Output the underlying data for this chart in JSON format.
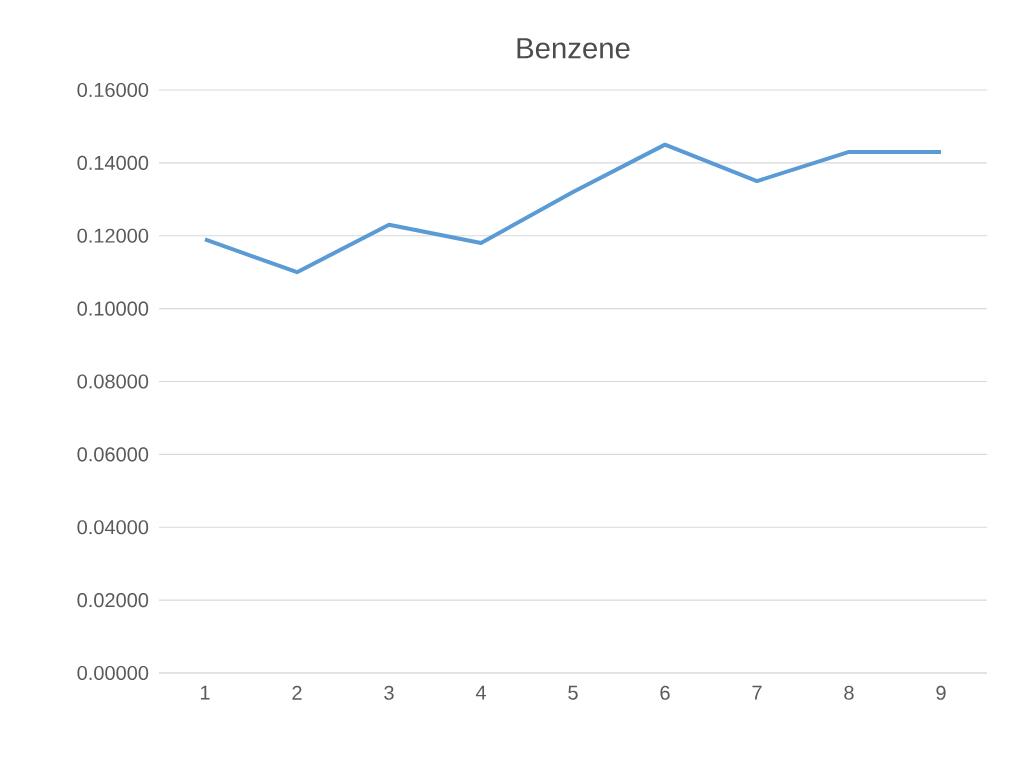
{
  "chart_data": {
    "type": "line",
    "title": "Benzene",
    "categories": [
      "1",
      "2",
      "3",
      "4",
      "5",
      "6",
      "7",
      "8",
      "9"
    ],
    "values": [
      0.119,
      0.11,
      0.123,
      0.118,
      0.132,
      0.145,
      0.135,
      0.143,
      0.143
    ],
    "color": "#5b9bd5",
    "ylim": [
      0,
      0.16
    ],
    "yticks": [
      {
        "value": 0,
        "label": "0.00000"
      },
      {
        "value": 0.02,
        "label": "0.02000"
      },
      {
        "value": 0.04,
        "label": "0.04000"
      },
      {
        "value": 0.06,
        "label": "0.06000"
      },
      {
        "value": 0.08,
        "label": "0.08000"
      },
      {
        "value": 0.1,
        "label": "0.10000"
      },
      {
        "value": 0.12,
        "label": "0.12000"
      },
      {
        "value": 0.14,
        "label": "0.14000"
      },
      {
        "value": 0.16,
        "label": "0.16000"
      }
    ],
    "grid": "y"
  }
}
